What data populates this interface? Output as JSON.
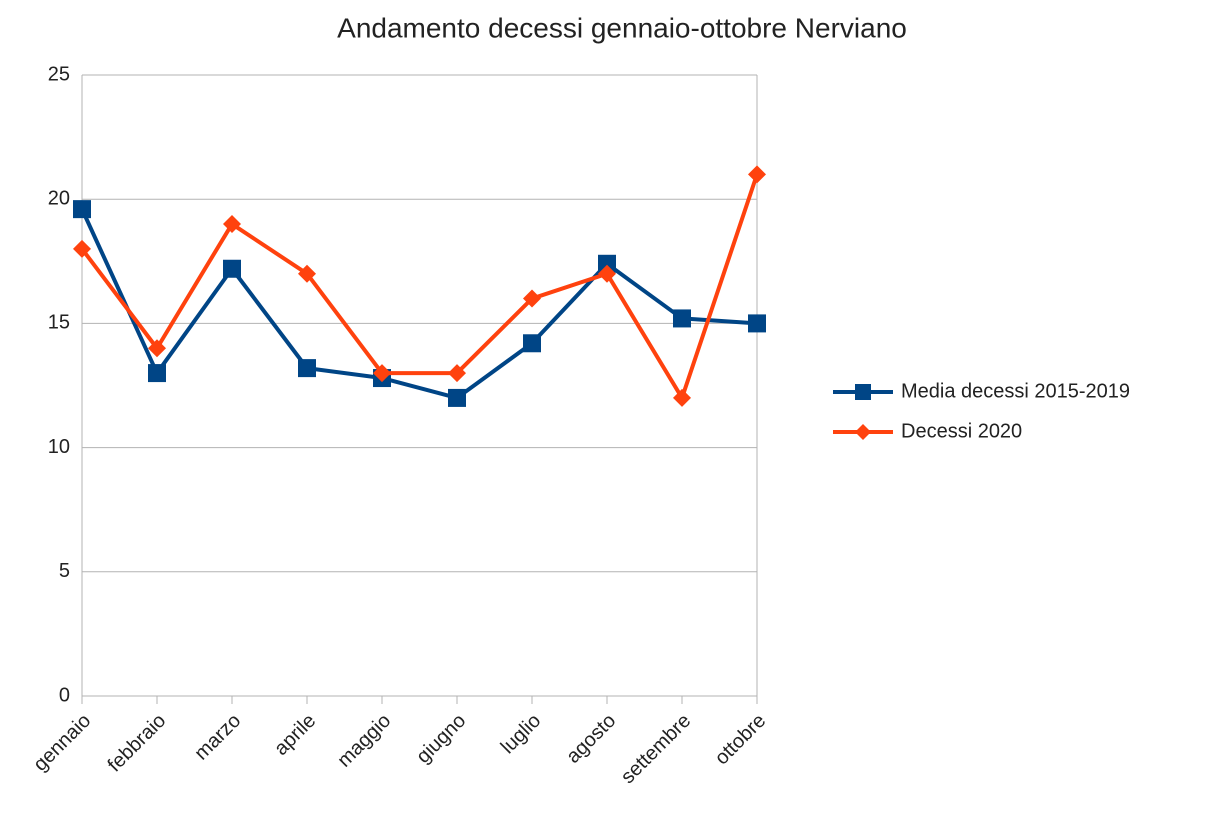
{
  "chart_data": {
    "type": "line",
    "title": "Andamento decessi gennaio-ottobre Nerviano",
    "categories": [
      "gennaio",
      "febbraio",
      "marzo",
      "aprile",
      "maggio",
      "giugno",
      "luglio",
      "agosto",
      "settembre",
      "ottobre"
    ],
    "series": [
      {
        "name": "Media decessi 2015-2019",
        "color": "#004586",
        "marker": "square",
        "values": [
          19.6,
          13.0,
          17.2,
          13.2,
          12.8,
          12.0,
          14.2,
          17.4,
          15.2,
          15.0
        ]
      },
      {
        "name": "Decessi 2020",
        "color": "#ff420e",
        "marker": "diamond",
        "values": [
          18,
          14,
          19,
          17,
          13,
          13,
          16,
          17,
          12,
          21
        ]
      }
    ],
    "ylim": [
      0,
      25
    ],
    "yticks": [
      0,
      5,
      10,
      15,
      20,
      25
    ],
    "grid": true,
    "legend": "right"
  }
}
